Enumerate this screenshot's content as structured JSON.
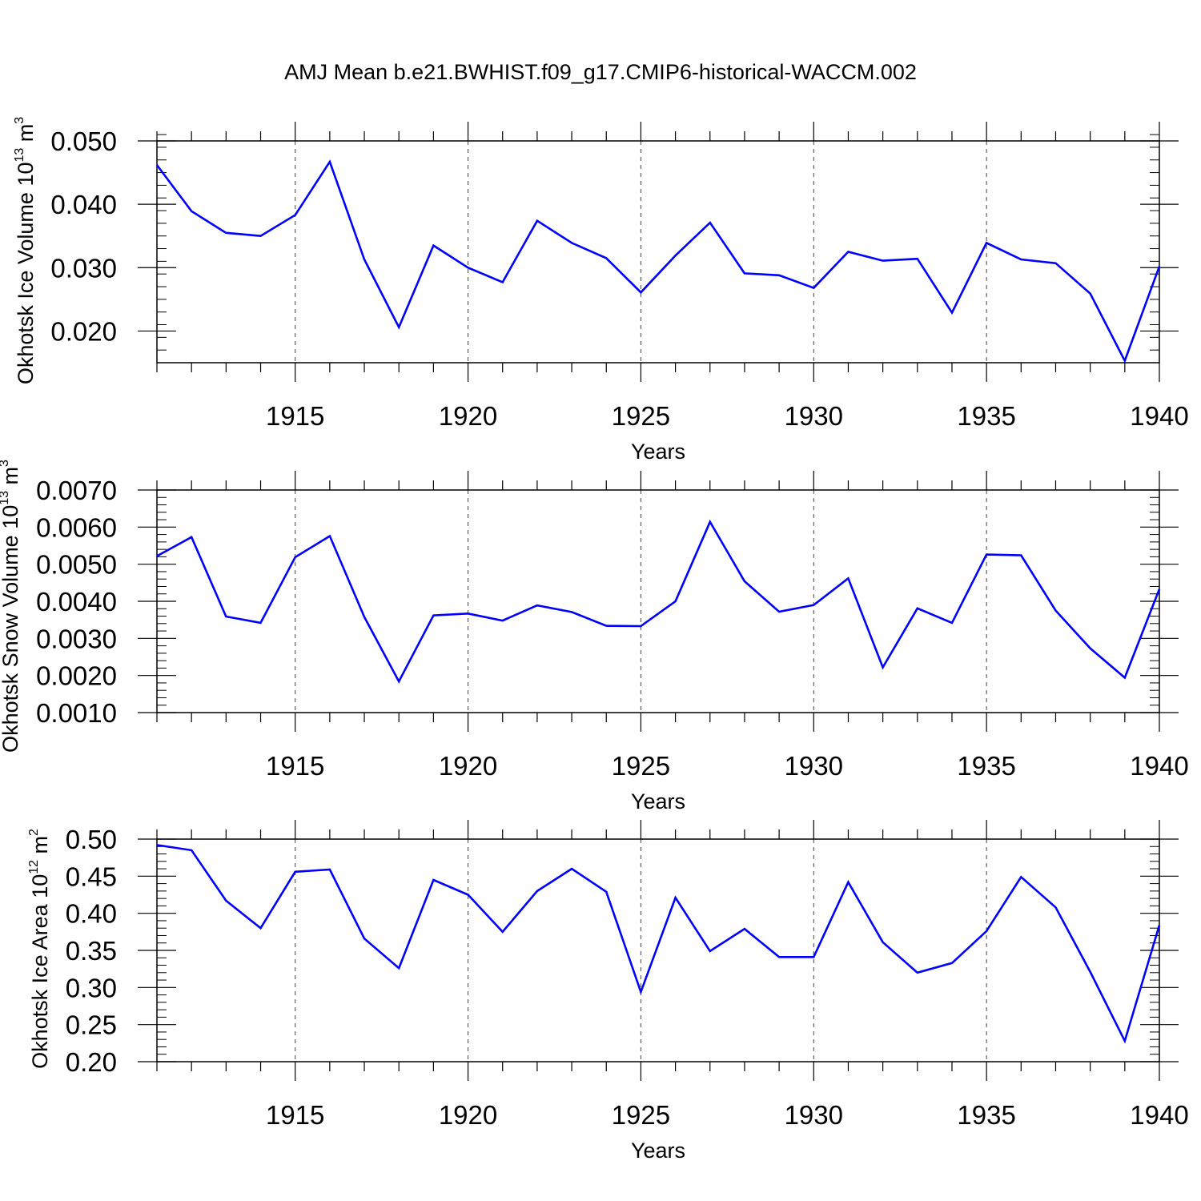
{
  "title": "AMJ Mean b.e21.BWHIST.f09_g17.CMIP6-historical-WACCM.002",
  "line_color": "#0000ff",
  "chart_data": [
    {
      "type": "line",
      "ylabel_main": "Okhotsk Ice Volume 10",
      "ylabel_exp": "13",
      "ylabel_unit": " m",
      "ylabel_unit_exp": "3",
      "xlabel": "Years",
      "xlim": [
        1911,
        1940
      ],
      "ylim": [
        0.015,
        0.05
      ],
      "yticks": [
        0.02,
        0.03,
        0.04,
        0.05
      ],
      "ytick_labels": [
        "0.020",
        "0.030",
        "0.040",
        "0.050"
      ],
      "yminor_step": 0.002,
      "xticks": [
        1915,
        1920,
        1925,
        1930,
        1935,
        1940
      ],
      "xtick_labels": [
        "1915",
        "1920",
        "1925",
        "1930",
        "1935",
        "1940"
      ],
      "grid": "vertical dashed at major x ticks",
      "x": [
        1911,
        1912,
        1913,
        1914,
        1915,
        1916,
        1917,
        1918,
        1919,
        1920,
        1921,
        1922,
        1923,
        1924,
        1925,
        1926,
        1927,
        1928,
        1929,
        1930,
        1931,
        1932,
        1933,
        1934,
        1935,
        1936,
        1937,
        1938,
        1939,
        1940
      ],
      "values": [
        0.0462,
        0.0389,
        0.0355,
        0.035,
        0.0383,
        0.0467,
        0.0313,
        0.0206,
        0.0335,
        0.03,
        0.0277,
        0.0374,
        0.0339,
        0.0315,
        0.0261,
        0.0319,
        0.0371,
        0.0291,
        0.0288,
        0.0268,
        0.0325,
        0.0311,
        0.0314,
        0.0229,
        0.0339,
        0.0313,
        0.0307,
        0.0259,
        0.0153,
        0.0302
      ]
    },
    {
      "type": "line",
      "ylabel_main": "Okhotsk Snow Volume 10",
      "ylabel_exp": "13",
      "ylabel_unit": " m",
      "ylabel_unit_exp": "3",
      "xlabel": "Years",
      "xlim": [
        1911,
        1940
      ],
      "ylim": [
        0.001,
        0.007
      ],
      "yticks": [
        0.001,
        0.002,
        0.003,
        0.004,
        0.005,
        0.006,
        0.007
      ],
      "ytick_labels": [
        "0.0010",
        "0.0020",
        "0.0030",
        "0.0040",
        "0.0050",
        "0.0060",
        "0.0070"
      ],
      "yminor_step": 0.0002,
      "xticks": [
        1915,
        1920,
        1925,
        1930,
        1935,
        1940
      ],
      "xtick_labels": [
        "1915",
        "1920",
        "1925",
        "1930",
        "1935",
        "1940"
      ],
      "grid": "vertical dashed at major x ticks",
      "x": [
        1911,
        1912,
        1913,
        1914,
        1915,
        1916,
        1917,
        1918,
        1919,
        1920,
        1921,
        1922,
        1923,
        1924,
        1925,
        1926,
        1927,
        1928,
        1929,
        1930,
        1931,
        1932,
        1933,
        1934,
        1935,
        1936,
        1937,
        1938,
        1939,
        1940
      ],
      "values": [
        0.00522,
        0.00573,
        0.00359,
        0.00342,
        0.00519,
        0.00576,
        0.00358,
        0.00184,
        0.00362,
        0.00367,
        0.00348,
        0.00389,
        0.00371,
        0.00334,
        0.00333,
        0.004,
        0.00614,
        0.00454,
        0.00372,
        0.0039,
        0.00462,
        0.00222,
        0.00381,
        0.00342,
        0.00526,
        0.00524,
        0.00375,
        0.00273,
        0.00194,
        0.00433
      ]
    },
    {
      "type": "line",
      "ylabel_main": "Okhotsk Ice Area 10",
      "ylabel_exp": "12",
      "ylabel_unit": " m",
      "ylabel_unit_exp": "2",
      "xlabel": "Years",
      "xlim": [
        1911,
        1940
      ],
      "ylim": [
        0.2,
        0.5
      ],
      "yticks": [
        0.2,
        0.25,
        0.3,
        0.35,
        0.4,
        0.45,
        0.5
      ],
      "ytick_labels": [
        "0.20",
        "0.25",
        "0.30",
        "0.35",
        "0.40",
        "0.45",
        "0.50"
      ],
      "yminor_step": 0.01,
      "xticks": [
        1915,
        1920,
        1925,
        1930,
        1935,
        1940
      ],
      "xtick_labels": [
        "1915",
        "1920",
        "1925",
        "1930",
        "1935",
        "1940"
      ],
      "grid": "vertical dashed at major x ticks",
      "x": [
        1911,
        1912,
        1913,
        1914,
        1915,
        1916,
        1917,
        1918,
        1919,
        1920,
        1921,
        1922,
        1923,
        1924,
        1925,
        1926,
        1927,
        1928,
        1929,
        1930,
        1931,
        1932,
        1933,
        1934,
        1935,
        1936,
        1937,
        1938,
        1939,
        1940
      ],
      "values": [
        0.492,
        0.485,
        0.417,
        0.38,
        0.456,
        0.459,
        0.366,
        0.326,
        0.445,
        0.425,
        0.375,
        0.43,
        0.46,
        0.429,
        0.294,
        0.421,
        0.349,
        0.379,
        0.341,
        0.341,
        0.442,
        0.361,
        0.32,
        0.333,
        0.376,
        0.449,
        0.408,
        0.321,
        0.228,
        0.384
      ]
    }
  ]
}
